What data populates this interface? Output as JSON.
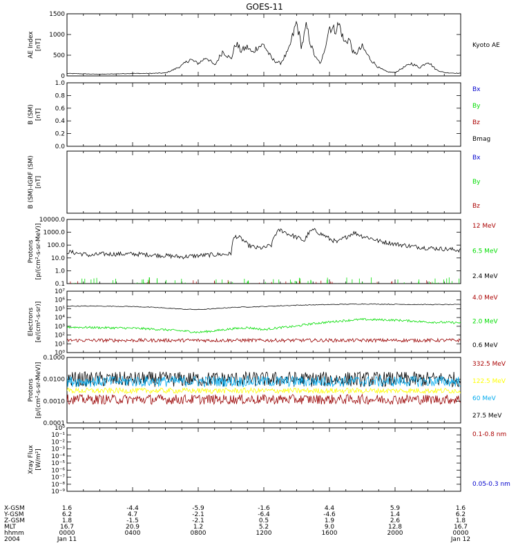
{
  "title": "GOES-11",
  "colors": {
    "black": "#000000",
    "blue": "#0000cc",
    "green": "#00dd00",
    "red": "#aa0000",
    "dark_red": "#990000",
    "yellow": "#ffff00",
    "cyan": "#00aaee"
  },
  "chart_data": [
    {
      "type": "line",
      "panel": "ae",
      "ylabel": [
        "AE Index",
        "[nT]"
      ],
      "yticks": [
        "0",
        "500",
        "1000",
        "1500"
      ],
      "ylim": [
        0,
        1500
      ],
      "legend": [
        {
          "label": "Kyoto AE",
          "color": "#000000"
        }
      ],
      "series": [
        {
          "name": "Kyoto AE",
          "x_hours": [
            0,
            1,
            2,
            3,
            4,
            5,
            6,
            6.5,
            7,
            7.5,
            8,
            8.5,
            9,
            9.5,
            10,
            10.3,
            10.6,
            11,
            11.3,
            11.6,
            12,
            12.5,
            13,
            13.5,
            14,
            14.3,
            14.6,
            14.9,
            15.2,
            15.5,
            16,
            16.3,
            16.6,
            16.9,
            17.2,
            17.5,
            18,
            18.5,
            19,
            19.5,
            20,
            20.5,
            21,
            21.5,
            22,
            22.5,
            23,
            24
          ],
          "values": [
            60,
            50,
            40,
            50,
            60,
            60,
            70,
            150,
            250,
            400,
            300,
            450,
            250,
            600,
            400,
            800,
            600,
            700,
            550,
            700,
            750,
            400,
            300,
            600,
            1300,
            700,
            1200,
            700,
            400,
            300,
            1200,
            1100,
            1250,
            800,
            900,
            500,
            700,
            400,
            200,
            100,
            80,
            200,
            300,
            200,
            350,
            150,
            80,
            60
          ]
        }
      ]
    },
    {
      "type": "line",
      "panel": "b_sm",
      "ylabel": [
        "B (SM)",
        "[nT]"
      ],
      "yticks": [
        "0.0",
        "0.2",
        "0.4",
        "0.6",
        "0.8",
        "1.0"
      ],
      "ylim": [
        0,
        1
      ],
      "legend": [
        {
          "label": "Bx",
          "color": "#0000cc"
        },
        {
          "label": "By",
          "color": "#00dd00"
        },
        {
          "label": "Bz",
          "color": "#aa0000"
        },
        {
          "label": "Bmag",
          "color": "#000000"
        }
      ],
      "series": []
    },
    {
      "type": "line",
      "panel": "b_igrf",
      "ylabel": [
        "B (SM)-IGRF (SM)",
        "[nT]"
      ],
      "yticks": [],
      "legend": [
        {
          "label": "Bx",
          "color": "#0000cc"
        },
        {
          "label": "By",
          "color": "#00dd00"
        },
        {
          "label": "Bz",
          "color": "#aa0000"
        }
      ],
      "series": []
    },
    {
      "type": "line",
      "panel": "protons_low",
      "scale": "log",
      "ylabel": [
        "Protons",
        "[p/(cm²-s-sr-MeV)]"
      ],
      "yticks": [
        "0.1",
        "1.0",
        "10.0",
        "100.0",
        "1000.0",
        "10000.0"
      ],
      "ylim": [
        0.1,
        10000
      ],
      "legend": [
        {
          "label": "12 MeV",
          "color": "#aa0000"
        },
        {
          "label": "6.5 MeV",
          "color": "#00dd00"
        },
        {
          "label": "2.4 MeV",
          "color": "#000000"
        }
      ],
      "series": [
        {
          "name": "2.4 MeV",
          "x_hours": [
            0,
            0.5,
            1,
            1.5,
            2,
            3,
            4,
            5,
            6,
            7,
            8,
            9,
            10,
            10.3,
            10.8,
            11,
            11.5,
            12,
            12.5,
            13,
            13.5,
            14,
            14.5,
            15,
            15.5,
            16,
            16.5,
            17,
            17.5,
            18,
            19,
            20,
            21,
            22,
            23,
            24
          ],
          "values": [
            30,
            25,
            20,
            15,
            20,
            20,
            20,
            18,
            15,
            12,
            15,
            18,
            20,
            500,
            200,
            100,
            60,
            60,
            100,
            1500,
            700,
            400,
            200,
            1500,
            700,
            300,
            150,
            400,
            900,
            500,
            200,
            120,
            80,
            60,
            50,
            40
          ]
        }
      ]
    },
    {
      "type": "line",
      "panel": "electrons",
      "scale": "log",
      "ylabel": [
        "Electrons",
        "[e/(cm²-s-sr)]"
      ],
      "yticks": [
        "10⁰",
        "10¹",
        "10²",
        "10³",
        "10⁴",
        "10⁵",
        "10⁶",
        "10⁷"
      ],
      "ylim": [
        1,
        10000000
      ],
      "legend": [
        {
          "label": "4.0 MeV",
          "color": "#aa0000"
        },
        {
          "label": "2.0 MeV",
          "color": "#00dd00"
        },
        {
          "label": "0.6 MeV",
          "color": "#000000"
        }
      ],
      "series": [
        {
          "name": "0.6 MeV",
          "x_hours": [
            0,
            2,
            4,
            6,
            7,
            8,
            9,
            10,
            12,
            14,
            16,
            18,
            20,
            22,
            24
          ],
          "values": [
            200000,
            200000,
            180000,
            120000,
            90000,
            80000,
            100000,
            140000,
            180000,
            250000,
            300000,
            350000,
            320000,
            300000,
            300000
          ]
        },
        {
          "name": "2.0 MeV",
          "x_hours": [
            0,
            2,
            4,
            6,
            7,
            8,
            9,
            10,
            11,
            12,
            14,
            16,
            18,
            20,
            22,
            24
          ],
          "values": [
            800,
            700,
            600,
            400,
            300,
            200,
            300,
            500,
            700,
            400,
            1000,
            3000,
            6000,
            5000,
            3000,
            2500
          ]
        },
        {
          "name": "4.0 MeV",
          "x_hours": [
            0,
            4,
            8,
            12,
            16,
            20,
            24
          ],
          "values": [
            25,
            25,
            25,
            25,
            25,
            25,
            25
          ]
        }
      ]
    },
    {
      "type": "line",
      "panel": "protons_high",
      "scale": "log",
      "ylabel": [
        "Protons",
        "[p/(cm²-s-sr-MeV)]"
      ],
      "yticks": [
        "0.0001",
        "0.0010",
        "0.0100",
        "0.1000"
      ],
      "ylim": [
        0.0001,
        0.1
      ],
      "legend": [
        {
          "label": "332.5 MeV",
          "color": "#aa0000"
        },
        {
          "label": "122.5 MeV",
          "color": "#ffff00"
        },
        {
          "label": "60 MeV",
          "color": "#00aaee"
        },
        {
          "label": "27.5 MeV",
          "color": "#000000"
        }
      ],
      "series": [
        {
          "name": "27.5 MeV",
          "x_hours": [
            0,
            24
          ],
          "values": [
            0.01,
            0.01
          ]
        },
        {
          "name": "60 MeV",
          "x_hours": [
            0,
            24
          ],
          "values": [
            0.008,
            0.008
          ]
        },
        {
          "name": "122.5 MeV",
          "x_hours": [
            0,
            24
          ],
          "values": [
            0.003,
            0.003
          ]
        },
        {
          "name": "332.5 MeV",
          "x_hours": [
            0,
            24
          ],
          "values": [
            0.0012,
            0.0012
          ]
        }
      ]
    },
    {
      "type": "line",
      "panel": "xray",
      "scale": "log",
      "ylabel": [
        "Xray Flux",
        "[W/m²]"
      ],
      "yticks": [
        "10⁻⁹",
        "10⁻⁸",
        "10⁻⁷",
        "10⁻⁶",
        "10⁻⁵",
        "10⁻⁴",
        "10⁻³",
        "10⁻²",
        "10⁻¹",
        "10⁰"
      ],
      "ylim": [
        1e-09,
        1
      ],
      "legend": [
        {
          "label": "0.1-0.8 nm",
          "color": "#aa0000"
        },
        {
          "label": "0.05-0.3 nm",
          "color": "#0000cc"
        }
      ],
      "series": []
    }
  ],
  "xaxis": {
    "labels": [
      "X-GSM",
      "Y-GSM",
      "Z-GSM",
      "MLT",
      "hhmm",
      "2004"
    ],
    "columns": [
      [
        "1.6",
        "6.2",
        "1.8",
        "16.7",
        "0000",
        "Jan 11"
      ],
      [
        "-4.4",
        "4.7",
        "-1.5",
        "20.9",
        "0400",
        ""
      ],
      [
        "-5.9",
        "-2.1",
        "-2.1",
        "1.2",
        "0800",
        ""
      ],
      [
        "-1.6",
        "-6.4",
        "0.5",
        "5.2",
        "1200",
        ""
      ],
      [
        "4.4",
        "-4.6",
        "1.9",
        "9.0",
        "1600",
        ""
      ],
      [
        "5.9",
        "1.4",
        "2.6",
        "12.8",
        "2000",
        ""
      ],
      [
        "1.6",
        "6.2",
        "1.8",
        "16.7",
        "0000",
        "Jan 12"
      ]
    ],
    "x_hours": [
      0,
      4,
      8,
      12,
      16,
      20,
      24
    ]
  }
}
